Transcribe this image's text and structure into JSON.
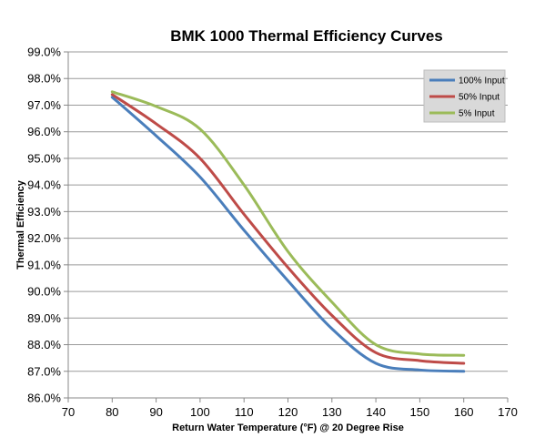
{
  "chart_data": {
    "type": "line",
    "title": "BMK 1000 Thermal Efficiency Curves",
    "xlabel": "Return Water Temperature (°F) @ 20 Degree Rise",
    "ylabel": "Thermal Efficiency",
    "xlim": [
      70,
      170
    ],
    "ylim": [
      86.0,
      99.0
    ],
    "xticks": [
      "70",
      "80",
      "90",
      "100",
      "110",
      "120",
      "130",
      "140",
      "150",
      "160",
      "170"
    ],
    "yticks": [
      "86.0%",
      "87.0%",
      "88.0%",
      "89.0%",
      "90.0%",
      "91.0%",
      "92.0%",
      "93.0%",
      "94.0%",
      "95.0%",
      "96.0%",
      "97.0%",
      "98.0%",
      "99.0%"
    ],
    "grid": "horizontal",
    "legend_position": "top-right",
    "x": [
      80,
      90,
      100,
      110,
      120,
      130,
      140,
      150,
      160
    ],
    "series": [
      {
        "name": "100% Input",
        "color": "#4A7EBB",
        "values": [
          97.3,
          95.85,
          94.3,
          92.3,
          90.4,
          88.6,
          87.3,
          87.05,
          87.0
        ]
      },
      {
        "name": "50% Input",
        "color": "#BE4B48",
        "values": [
          97.4,
          96.3,
          95.0,
          92.9,
          90.9,
          89.1,
          87.7,
          87.4,
          87.3
        ]
      },
      {
        "name": "5% Input",
        "color": "#9BBB59",
        "values": [
          97.5,
          96.95,
          96.1,
          94.0,
          91.5,
          89.6,
          88.0,
          87.65,
          87.6
        ]
      }
    ]
  }
}
